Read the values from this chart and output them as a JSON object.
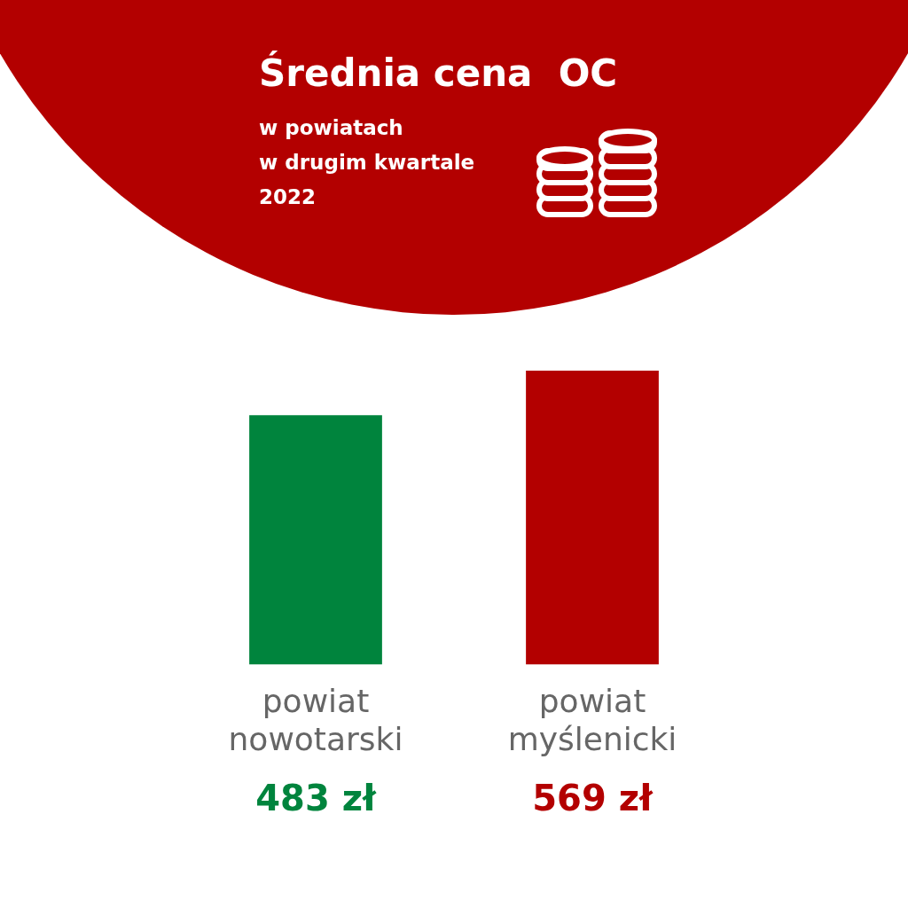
{
  "chart_data": {
    "type": "bar",
    "title": "Średnia cena  OC",
    "subtitle": "w powiatach\nw drugim kwartale\n2022",
    "categories": [
      "powiat\nnowotarski",
      "powiat\nmyślenicki"
    ],
    "values": [
      483,
      569
    ],
    "colors": [
      "#00843d",
      "#b30000"
    ],
    "value_labels": [
      "483 zł",
      "569 zł"
    ],
    "grid": false,
    "legend": false
  }
}
